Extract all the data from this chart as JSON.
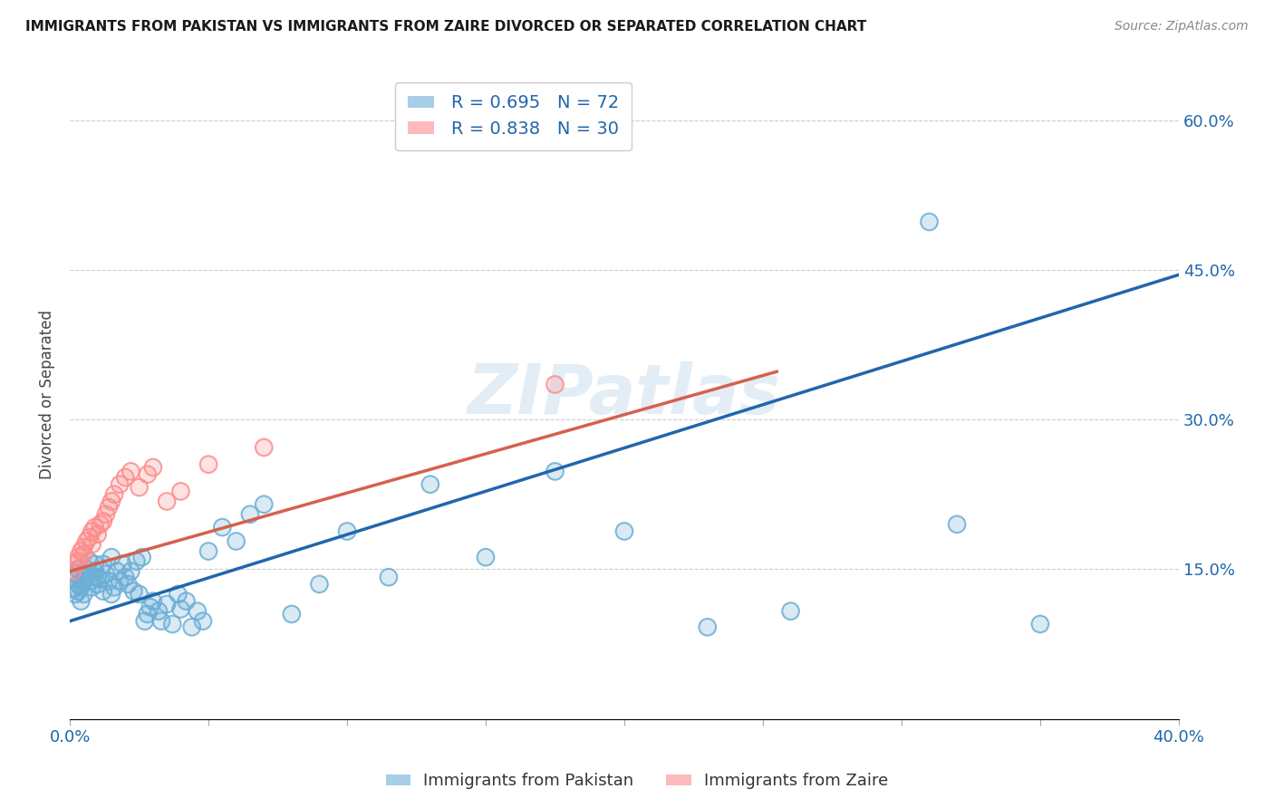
{
  "title": "IMMIGRANTS FROM PAKISTAN VS IMMIGRANTS FROM ZAIRE DIVORCED OR SEPARATED CORRELATION CHART",
  "source": "Source: ZipAtlas.com",
  "ylabel": "Divorced or Separated",
  "xlim": [
    0.0,
    0.4
  ],
  "ylim": [
    0.0,
    0.65
  ],
  "ytick_vals": [
    0.15,
    0.3,
    0.45,
    0.6
  ],
  "ytick_labels": [
    "15.0%",
    "30.0%",
    "45.0%",
    "60.0%"
  ],
  "pakistan_color": "#6baed6",
  "zaire_color": "#fc8d8d",
  "pakistan_line_color": "#2166ac",
  "zaire_line_color": "#d6604d",
  "legend_label_pakistan": "R = 0.695   N = 72",
  "legend_label_zaire": "R = 0.838   N = 30",
  "legend_bottom_pakistan": "Immigrants from Pakistan",
  "legend_bottom_zaire": "Immigrants from Zaire",
  "watermark": "ZIPatlas",
  "pak_line_x": [
    0.0,
    0.4
  ],
  "pak_line_y": [
    0.098,
    0.445
  ],
  "zaire_line_x": [
    0.0,
    0.255
  ],
  "zaire_line_y": [
    0.148,
    0.348
  ],
  "pak_scatter_x": [
    0.001,
    0.002,
    0.002,
    0.002,
    0.003,
    0.003,
    0.003,
    0.004,
    0.004,
    0.005,
    0.005,
    0.005,
    0.006,
    0.006,
    0.007,
    0.007,
    0.008,
    0.008,
    0.009,
    0.009,
    0.01,
    0.01,
    0.011,
    0.012,
    0.012,
    0.013,
    0.014,
    0.015,
    0.015,
    0.016,
    0.017,
    0.018,
    0.019,
    0.02,
    0.021,
    0.022,
    0.023,
    0.024,
    0.025,
    0.026,
    0.027,
    0.028,
    0.029,
    0.03,
    0.032,
    0.033,
    0.035,
    0.037,
    0.039,
    0.04,
    0.042,
    0.044,
    0.046,
    0.048,
    0.05,
    0.055,
    0.06,
    0.065,
    0.07,
    0.08,
    0.09,
    0.1,
    0.115,
    0.13,
    0.15,
    0.175,
    0.2,
    0.23,
    0.26,
    0.31,
    0.35,
    0.32
  ],
  "pak_scatter_y": [
    0.13,
    0.125,
    0.14,
    0.145,
    0.128,
    0.135,
    0.15,
    0.132,
    0.118,
    0.142,
    0.138,
    0.125,
    0.15,
    0.145,
    0.138,
    0.158,
    0.142,
    0.132,
    0.148,
    0.155,
    0.135,
    0.142,
    0.14,
    0.128,
    0.155,
    0.145,
    0.138,
    0.125,
    0.162,
    0.132,
    0.148,
    0.138,
    0.155,
    0.142,
    0.135,
    0.148,
    0.128,
    0.158,
    0.125,
    0.162,
    0.098,
    0.105,
    0.112,
    0.118,
    0.108,
    0.098,
    0.115,
    0.095,
    0.125,
    0.11,
    0.118,
    0.092,
    0.108,
    0.098,
    0.168,
    0.192,
    0.178,
    0.205,
    0.215,
    0.105,
    0.135,
    0.188,
    0.142,
    0.235,
    0.162,
    0.248,
    0.188,
    0.092,
    0.108,
    0.498,
    0.095,
    0.195
  ],
  "zaire_scatter_x": [
    0.001,
    0.002,
    0.003,
    0.003,
    0.004,
    0.005,
    0.005,
    0.006,
    0.007,
    0.008,
    0.008,
    0.009,
    0.01,
    0.011,
    0.012,
    0.013,
    0.014,
    0.015,
    0.016,
    0.018,
    0.02,
    0.022,
    0.025,
    0.028,
    0.03,
    0.035,
    0.04,
    0.05,
    0.07,
    0.175
  ],
  "zaire_scatter_y": [
    0.148,
    0.155,
    0.162,
    0.158,
    0.168,
    0.172,
    0.165,
    0.178,
    0.182,
    0.175,
    0.188,
    0.192,
    0.185,
    0.195,
    0.198,
    0.205,
    0.212,
    0.218,
    0.225,
    0.235,
    0.242,
    0.248,
    0.232,
    0.245,
    0.252,
    0.218,
    0.228,
    0.255,
    0.272,
    0.335
  ]
}
